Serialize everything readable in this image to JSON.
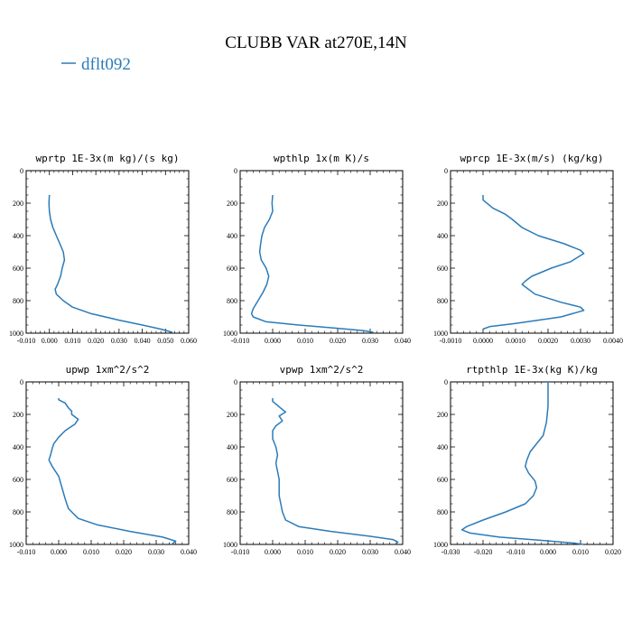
{
  "figure": {
    "title": "CLUBB VAR at270E,14N",
    "legend_label": "dflt092",
    "line_color": "#2b7bb9"
  },
  "chart_data": [
    {
      "type": "line",
      "title": "wprtp  1E-3x(m kg)/(s kg)",
      "xlim": [
        -0.01,
        0.06
      ],
      "ylim": [
        1000,
        0
      ],
      "x_ticks": [
        "-0.010",
        "0.000",
        "0.010",
        "0.020",
        "0.030",
        "0.040",
        "0.050",
        "0.060"
      ],
      "y_ticks": [
        "0",
        "200",
        "400",
        "600",
        "800",
        "1000"
      ],
      "series": [
        {
          "name": "dflt092",
          "points": [
            [
              0.0,
              150
            ],
            [
              -0.0002,
              200
            ],
            [
              0.0,
              250
            ],
            [
              0.0005,
              300
            ],
            [
              0.0015,
              350
            ],
            [
              0.003,
              400
            ],
            [
              0.0045,
              450
            ],
            [
              0.006,
              500
            ],
            [
              0.0065,
              550
            ],
            [
              0.0055,
              600
            ],
            [
              0.0048,
              650
            ],
            [
              0.0035,
              700
            ],
            [
              0.0025,
              730
            ],
            [
              0.003,
              760
            ],
            [
              0.006,
              800
            ],
            [
              0.01,
              840
            ],
            [
              0.018,
              880
            ],
            [
              0.03,
              920
            ],
            [
              0.04,
              950
            ],
            [
              0.048,
              975
            ],
            [
              0.053,
              995
            ]
          ]
        }
      ]
    },
    {
      "type": "line",
      "title": "wpthlp  1x(m K)/s",
      "xlim": [
        -0.01,
        0.04
      ],
      "ylim": [
        1000,
        0
      ],
      "x_ticks": [
        "-0.010",
        "0.000",
        "0.010",
        "0.020",
        "0.030",
        "0.040"
      ],
      "y_ticks": [
        "0",
        "200",
        "400",
        "600",
        "800",
        "1000"
      ],
      "series": [
        {
          "name": "dflt092",
          "points": [
            [
              0.0,
              150
            ],
            [
              -0.0002,
              200
            ],
            [
              0.0,
              250
            ],
            [
              -0.001,
              300
            ],
            [
              -0.0025,
              350
            ],
            [
              -0.0033,
              400
            ],
            [
              -0.0037,
              450
            ],
            [
              -0.004,
              500
            ],
            [
              -0.0035,
              550
            ],
            [
              -0.002,
              600
            ],
            [
              -0.0012,
              650
            ],
            [
              -0.0018,
              700
            ],
            [
              -0.003,
              750
            ],
            [
              -0.0045,
              800
            ],
            [
              -0.006,
              850
            ],
            [
              -0.0065,
              880
            ],
            [
              -0.006,
              900
            ],
            [
              -0.002,
              930
            ],
            [
              0.008,
              950
            ],
            [
              0.02,
              970
            ],
            [
              0.028,
              985
            ],
            [
              0.031,
              995
            ]
          ]
        }
      ]
    },
    {
      "type": "line",
      "title": "wprcp  1E-3x(m/s) (kg/kg)",
      "xlim": [
        -0.001,
        0.004
      ],
      "ylim": [
        1000,
        0
      ],
      "x_ticks": [
        "-0.0010",
        "0.0000",
        "0.0010",
        "0.0020",
        "0.0030",
        "0.0040"
      ],
      "y_ticks": [
        "0",
        "200",
        "400",
        "600",
        "800",
        "1000"
      ],
      "series": [
        {
          "name": "dflt092",
          "points": [
            [
              0.0,
              150
            ],
            [
              0.0,
              180
            ],
            [
              0.0003,
              230
            ],
            [
              0.0007,
              270
            ],
            [
              0.0009,
              300
            ],
            [
              0.0012,
              350
            ],
            [
              0.0017,
              400
            ],
            [
              0.0025,
              450
            ],
            [
              0.003,
              490
            ],
            [
              0.0031,
              510
            ],
            [
              0.0027,
              560
            ],
            [
              0.0021,
              600
            ],
            [
              0.0015,
              650
            ],
            [
              0.0013,
              680
            ],
            [
              0.0012,
              700
            ],
            [
              0.0016,
              760
            ],
            [
              0.0024,
              810
            ],
            [
              0.003,
              840
            ],
            [
              0.0031,
              860
            ],
            [
              0.0024,
              900
            ],
            [
              0.001,
              940
            ],
            [
              0.0002,
              960
            ],
            [
              0.0,
              975
            ]
          ]
        }
      ]
    },
    {
      "type": "line",
      "title": "upwp  1xm^2/s^2",
      "xlim": [
        -0.01,
        0.04
      ],
      "ylim": [
        1000,
        0
      ],
      "x_ticks": [
        "-0.010",
        "0.000",
        "0.010",
        "0.020",
        "0.030",
        "0.040"
      ],
      "y_ticks": [
        "0",
        "200",
        "400",
        "600",
        "800",
        "1000"
      ],
      "series": [
        {
          "name": "dflt092",
          "points": [
            [
              0.0,
              100
            ],
            [
              0.0,
              110
            ],
            [
              0.002,
              130
            ],
            [
              0.003,
              160
            ],
            [
              0.004,
              180
            ],
            [
              0.004,
              200
            ],
            [
              0.006,
              230
            ],
            [
              0.005,
              260
            ],
            [
              0.002,
              300
            ],
            [
              0.0,
              340
            ],
            [
              -0.0015,
              380
            ],
            [
              -0.002,
              410
            ],
            [
              -0.0025,
              450
            ],
            [
              -0.003,
              480
            ],
            [
              -0.002,
              520
            ],
            [
              0.0,
              580
            ],
            [
              0.001,
              650
            ],
            [
              0.002,
              720
            ],
            [
              0.003,
              780
            ],
            [
              0.006,
              840
            ],
            [
              0.012,
              880
            ],
            [
              0.022,
              920
            ],
            [
              0.032,
              955
            ],
            [
              0.036,
              980
            ],
            [
              0.035,
              995
            ]
          ]
        }
      ]
    },
    {
      "type": "line",
      "title": "vpwp  1xm^2/s^2",
      "xlim": [
        -0.01,
        0.04
      ],
      "ylim": [
        1000,
        0
      ],
      "x_ticks": [
        "-0.010",
        "0.000",
        "0.010",
        "0.020",
        "0.030",
        "0.040"
      ],
      "y_ticks": [
        "0",
        "200",
        "400",
        "600",
        "800",
        "1000"
      ],
      "series": [
        {
          "name": "dflt092",
          "points": [
            [
              0.0,
              100
            ],
            [
              0.0,
              120
            ],
            [
              0.003,
              170
            ],
            [
              0.004,
              185
            ],
            [
              0.002,
              210
            ],
            [
              0.003,
              240
            ],
            [
              0.001,
              270
            ],
            [
              0.0,
              300
            ],
            [
              0.0,
              350
            ],
            [
              0.001,
              400
            ],
            [
              0.0015,
              450
            ],
            [
              0.001,
              500
            ],
            [
              0.0015,
              550
            ],
            [
              0.002,
              600
            ],
            [
              0.002,
              650
            ],
            [
              0.002,
              700
            ],
            [
              0.0025,
              750
            ],
            [
              0.003,
              800
            ],
            [
              0.004,
              850
            ],
            [
              0.008,
              890
            ],
            [
              0.018,
              920
            ],
            [
              0.03,
              950
            ],
            [
              0.037,
              970
            ],
            [
              0.0385,
              985
            ],
            [
              0.038,
              995
            ]
          ]
        }
      ]
    },
    {
      "type": "line",
      "title": "rtpthlp  1E-3x(kg K)/kg",
      "xlim": [
        -0.03,
        0.02
      ],
      "ylim": [
        1000,
        0
      ],
      "x_ticks": [
        "-0.030",
        "-0.020",
        "-0.010",
        "0.000",
        "0.010",
        "0.020"
      ],
      "y_ticks": [
        "0",
        "200",
        "400",
        "600",
        "800",
        "1000"
      ],
      "series": [
        {
          "name": "dflt092",
          "points": [
            [
              0.0,
              0
            ],
            [
              0.0,
              150
            ],
            [
              -0.0005,
              250
            ],
            [
              -0.0015,
              330
            ],
            [
              -0.0035,
              380
            ],
            [
              -0.0055,
              430
            ],
            [
              -0.0065,
              480
            ],
            [
              -0.007,
              520
            ],
            [
              -0.006,
              560
            ],
            [
              -0.004,
              610
            ],
            [
              -0.0035,
              650
            ],
            [
              -0.0045,
              700
            ],
            [
              -0.007,
              750
            ],
            [
              -0.013,
              800
            ],
            [
              -0.02,
              850
            ],
            [
              -0.025,
              890
            ],
            [
              -0.0265,
              910
            ],
            [
              -0.024,
              930
            ],
            [
              -0.015,
              955
            ],
            [
              -0.002,
              975
            ],
            [
              0.007,
              990
            ],
            [
              0.011,
              1000
            ]
          ]
        }
      ]
    }
  ]
}
